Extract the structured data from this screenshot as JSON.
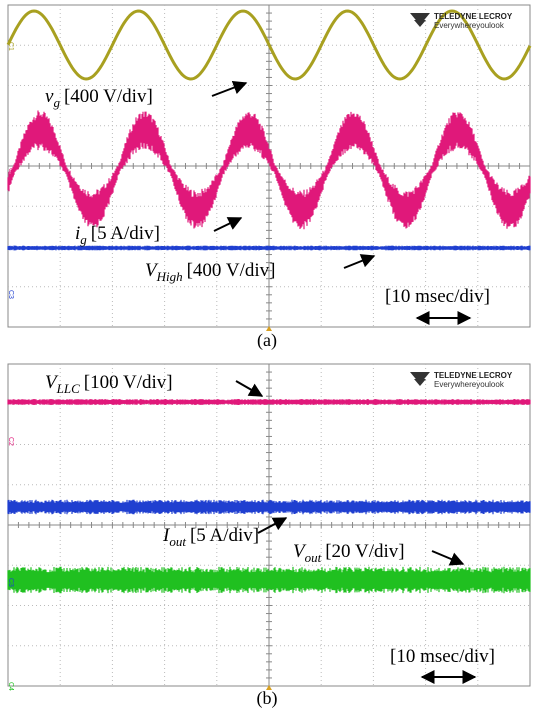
{
  "panels": [
    {
      "caption": "(a)",
      "logo": {
        "brand": "TELEDYNE LECROY",
        "tagline": "Everywhereyoulook"
      },
      "labels": [
        {
          "symbol": "v",
          "subscript": "g",
          "scale": "[400 V/div]"
        },
        {
          "symbol": "i",
          "subscript": "g",
          "scale": "[5 A/div]"
        },
        {
          "symbol": "V",
          "subscript": "High",
          "scale": "[400 V/div]"
        }
      ],
      "time_scale": "[10 msec/div]",
      "channel_markers": [
        "C1",
        "C2",
        "C3"
      ]
    },
    {
      "caption": "(b)",
      "logo": {
        "brand": "TELEDYNE LECROY",
        "tagline": "Everywhereyoulook"
      },
      "labels": [
        {
          "symbol": "V",
          "subscript": "LLC",
          "scale": "[100 V/div]"
        },
        {
          "symbol": "I",
          "subscript": "out",
          "scale": "[5 A/div]"
        },
        {
          "symbol": "V",
          "subscript": "out",
          "scale": "[20 V/div]"
        }
      ],
      "time_scale": "[10 msec/div]",
      "channel_markers": [
        "C2",
        "C3",
        "C4"
      ]
    }
  ]
}
